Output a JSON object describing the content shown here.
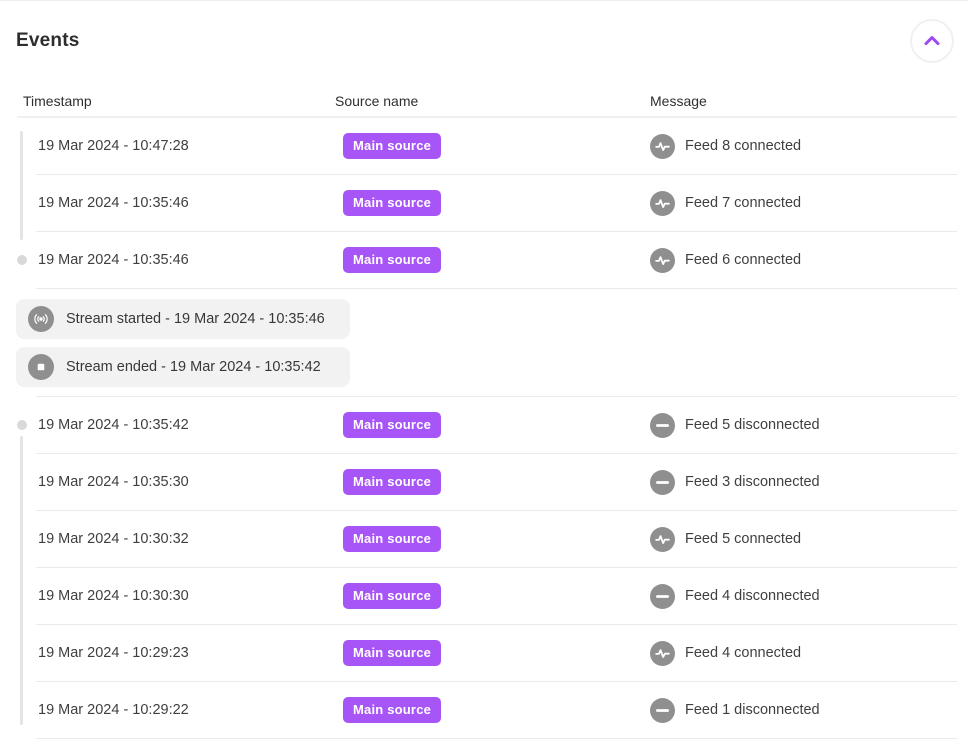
{
  "header": {
    "title": "Events",
    "collapse_button": {
      "icon": "chevron-up-icon"
    }
  },
  "table": {
    "columns": [
      {
        "label": "Timestamp"
      },
      {
        "label": "Source name"
      },
      {
        "label": "Message"
      }
    ],
    "groups": [
      {
        "rows": [
          {
            "timestamp": "19 Mar 2024 - 10:47:28",
            "source": "Main source",
            "message": "Feed 8 connected",
            "status": "connected",
            "icon": "pulse-icon",
            "timeline_dot": false
          },
          {
            "timestamp": "19 Mar 2024 - 10:35:46",
            "source": "Main source",
            "message": "Feed 7 connected",
            "status": "connected",
            "icon": "pulse-icon",
            "timeline_dot": false
          },
          {
            "timestamp": "19 Mar 2024 - 10:35:46",
            "source": "Main source",
            "message": "Feed 6 connected",
            "status": "connected",
            "icon": "pulse-icon",
            "timeline_dot": true
          }
        ]
      },
      {
        "rows": [
          {
            "timestamp": "19 Mar 2024 - 10:35:42",
            "source": "Main source",
            "message": "Feed 5 disconnected",
            "status": "disconnected",
            "icon": "minus-icon",
            "timeline_dot": true
          },
          {
            "timestamp": "19 Mar 2024 - 10:35:30",
            "source": "Main source",
            "message": "Feed 3 disconnected",
            "status": "disconnected",
            "icon": "minus-icon",
            "timeline_dot": false
          },
          {
            "timestamp": "19 Mar 2024 - 10:30:32",
            "source": "Main source",
            "message": "Feed 5 connected",
            "status": "connected",
            "icon": "pulse-icon",
            "timeline_dot": false
          },
          {
            "timestamp": "19 Mar 2024 - 10:30:30",
            "source": "Main source",
            "message": "Feed 4 disconnected",
            "status": "disconnected",
            "icon": "minus-icon",
            "timeline_dot": false
          },
          {
            "timestamp": "19 Mar 2024 - 10:29:23",
            "source": "Main source",
            "message": "Feed 4 connected",
            "status": "connected",
            "icon": "pulse-icon",
            "timeline_dot": false
          },
          {
            "timestamp": "19 Mar 2024 - 10:29:22",
            "source": "Main source",
            "message": "Feed 1 disconnected",
            "status": "disconnected",
            "icon": "minus-icon",
            "timeline_dot": false
          }
        ]
      }
    ],
    "stream_markers": [
      {
        "type": "started",
        "label": "Stream started - 19 Mar 2024 - 10:35:46",
        "icon": "broadcast-icon"
      },
      {
        "type": "ended",
        "label": "Stream ended - 19 Mar 2024 - 10:35:42",
        "icon": "stop-icon"
      }
    ]
  },
  "colors": {
    "badge_purple": "#A855F7",
    "chevron_purple": "#9B4BF0",
    "icon_gray": "#8F8F8F",
    "pill_background": "#F2F2F2",
    "timeline_gray": "#E4E4E4"
  }
}
